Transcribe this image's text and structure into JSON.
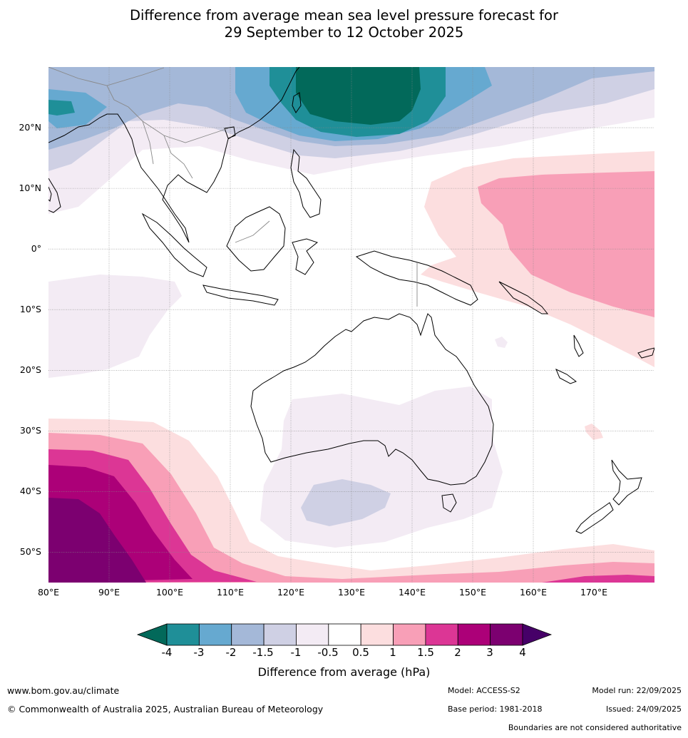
{
  "title": {
    "line1": "Difference from average mean sea level pressure forecast for",
    "line2": "29 September to 12 October 2025"
  },
  "map": {
    "lat_labels": [
      "20°N",
      "10°N",
      "0°",
      "10°S",
      "20°S",
      "30°S",
      "40°S",
      "50°S"
    ],
    "lon_labels": [
      "80°E",
      "90°E",
      "100°E",
      "110°E",
      "120°E",
      "130°E",
      "140°E",
      "150°E",
      "160°E",
      "170°E"
    ],
    "extent": {
      "lon_min": 80,
      "lon_max": 180,
      "lat_min": -55,
      "lat_max": 30
    },
    "anomaly_regions": [
      {
        "name": "north-pacific-low",
        "level": "-4 to -3",
        "centre": "25°N 135°E"
      },
      {
        "name": "west-pacific-high",
        "level": "1 to 1.5",
        "centre": "5°N 170°E"
      },
      {
        "name": "southern-ocean-high",
        "level": "3 to 4",
        "centre": "50°S 85°E"
      },
      {
        "name": "australian-bight-low",
        "level": "-1.5 to -1",
        "centre": "42°S 127°E"
      }
    ]
  },
  "colorbar": {
    "colors": [
      "#02695a",
      "#1f8f98",
      "#66a9d0",
      "#a4b8d8",
      "#cfd0e4",
      "#f3ebf4",
      "#ffffff",
      "#fcdedf",
      "#f89fb7",
      "#dc3695",
      "#ac0078",
      "#7c0070",
      "#460068"
    ],
    "ticks": [
      "-4",
      "-3",
      "-2",
      "-1.5",
      "-1",
      "-0.5",
      "0.5",
      "1",
      "1.5",
      "2",
      "3",
      "4"
    ],
    "label": "Difference from average (hPa)"
  },
  "footer": {
    "website": "www.bom.gov.au/climate",
    "copyright": "© Commonwealth of Australia 2025, Australian Bureau of Meteorology",
    "model": "Model: ACCESS-S2",
    "base_period": "Base period: 1981-2018",
    "model_run": "Model run: 22/09/2025",
    "issued": "Issued: 24/09/2025",
    "disclaimer": "Boundaries are not considered authoritative"
  }
}
